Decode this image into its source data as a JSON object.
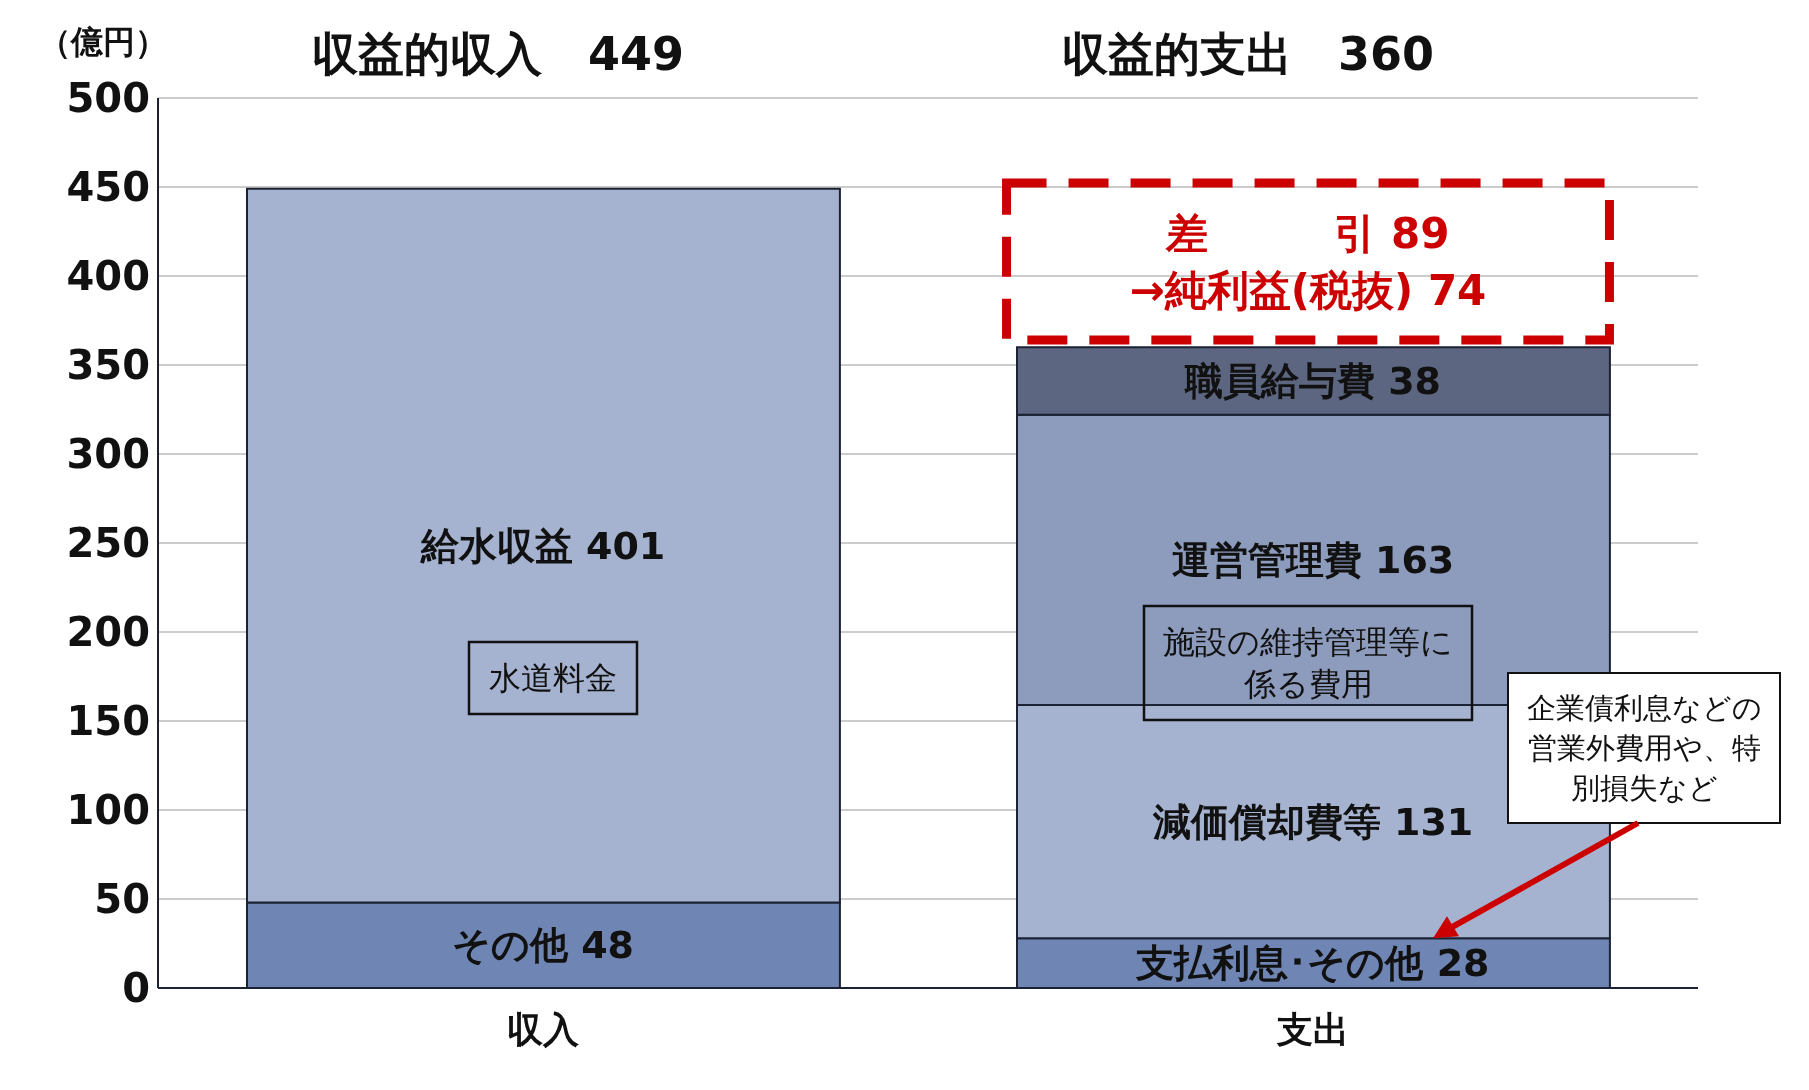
{
  "chart_data": {
    "type": "bar",
    "ylabel": "（億円）",
    "categories": [
      "収入",
      "支出"
    ],
    "stacked": true,
    "ylim": [
      0,
      500
    ],
    "yticks": [
      0,
      50,
      100,
      150,
      200,
      250,
      300,
      350,
      400,
      450,
      500
    ],
    "grid": "y",
    "series": [
      {
        "color": "#6f86b4",
        "values": [
          48,
          28
        ],
        "value_labels": [
          "その他 48",
          "支払利息･その他 28"
        ]
      },
      {
        "color": "#a6b3d0",
        "values": [
          401,
          131
        ],
        "value_labels": [
          "給水収益 401",
          "減価償却費等 131"
        ]
      },
      {
        "color": "#8d9cbd",
        "values": [
          null,
          163
        ],
        "value_labels": [
          null,
          "運営管理費 163"
        ]
      },
      {
        "color": "#5c6680",
        "values": [
          null,
          38
        ],
        "value_labels": [
          null,
          "職員給与費 38"
        ]
      }
    ],
    "annotations": [
      "収益的収入　449",
      "収益的支出　360",
      "水道料金",
      "施設の維持管理等に係る費用",
      "差　　　引 89",
      "→純利益(税抜) 74",
      "企業債利息などの営業外費用や、特別損失など"
    ]
  }
}
